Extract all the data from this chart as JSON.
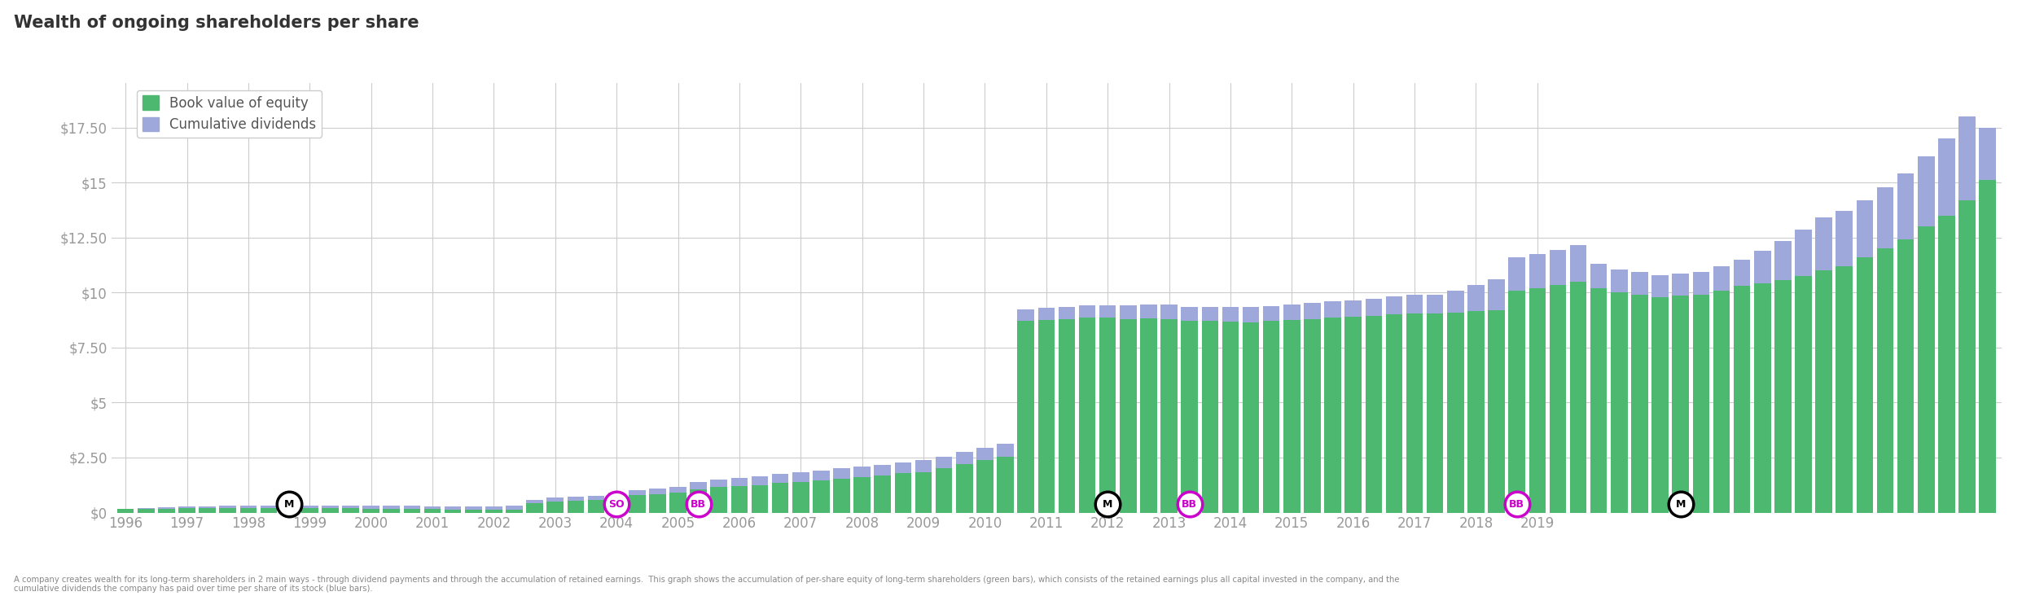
{
  "title": "Wealth of ongoing shareholders per share",
  "years_labels": [
    1996,
    1997,
    1998,
    1999,
    2000,
    2001,
    2002,
    2003,
    2004,
    2005,
    2006,
    2007,
    2008,
    2009,
    2010,
    2011,
    2012,
    2013,
    2014,
    2015,
    2016,
    2017,
    2018,
    2019
  ],
  "book_value": [
    0.15,
    0.17,
    0.18,
    0.19,
    0.2,
    0.21,
    0.22,
    0.22,
    0.22,
    0.21,
    0.21,
    0.2,
    0.18,
    0.17,
    0.16,
    0.15,
    0.14,
    0.13,
    0.13,
    0.14,
    0.42,
    0.5,
    0.55,
    0.58,
    0.7,
    0.78,
    0.85,
    0.9,
    1.05,
    1.15,
    1.2,
    1.25,
    1.35,
    1.4,
    1.48,
    1.55,
    1.62,
    1.7,
    1.78,
    1.85,
    2.0,
    2.2,
    2.4,
    2.55,
    8.7,
    8.75,
    8.8,
    8.85,
    8.85,
    8.8,
    8.82,
    8.8,
    8.72,
    8.7,
    8.68,
    8.65,
    8.7,
    8.75,
    8.8,
    8.85,
    8.9,
    8.95,
    9.0,
    9.05,
    9.05,
    9.1,
    9.15,
    9.2,
    10.1,
    10.2,
    10.35,
    10.5,
    10.2,
    10.0,
    9.9,
    9.8,
    9.85,
    9.9,
    10.1,
    10.3,
    10.4,
    10.55,
    10.75,
    11.0,
    11.2,
    11.6,
    12.0,
    12.4,
    13.0,
    13.5,
    14.2,
    15.1
  ],
  "cum_dividends": [
    0.03,
    0.05,
    0.06,
    0.07,
    0.08,
    0.09,
    0.1,
    0.11,
    0.11,
    0.12,
    0.12,
    0.13,
    0.13,
    0.13,
    0.14,
    0.14,
    0.15,
    0.15,
    0.15,
    0.16,
    0.16,
    0.17,
    0.17,
    0.18,
    0.22,
    0.24,
    0.26,
    0.28,
    0.32,
    0.35,
    0.38,
    0.4,
    0.4,
    0.42,
    0.44,
    0.46,
    0.46,
    0.48,
    0.5,
    0.52,
    0.52,
    0.54,
    0.56,
    0.58,
    0.52,
    0.54,
    0.56,
    0.58,
    0.58,
    0.6,
    0.62,
    0.64,
    0.64,
    0.65,
    0.66,
    0.68,
    0.68,
    0.7,
    0.72,
    0.74,
    0.74,
    0.78,
    0.82,
    0.86,
    0.86,
    1.0,
    1.2,
    1.4,
    1.5,
    1.55,
    1.6,
    1.65,
    1.1,
    1.05,
    1.02,
    1.0,
    1.0,
    1.05,
    1.1,
    1.2,
    1.5,
    1.8,
    2.1,
    2.4,
    2.5,
    2.6,
    2.8,
    3.0,
    3.2,
    3.5,
    3.8,
    2.4
  ],
  "green_color": "#4db870",
  "blue_color": "#9fa8da",
  "grid_color": "#cccccc",
  "ytick_vals": [
    0,
    2.5,
    5.0,
    7.5,
    10.0,
    12.5,
    15.0,
    17.5
  ],
  "ytick_labels": [
    "$0",
    "$2.50",
    "$5",
    "$7.50",
    "$10",
    "$12.50",
    "$15",
    "$17.50"
  ],
  "ylim": [
    0,
    19.5
  ],
  "annotations": [
    {
      "quarter_idx": 8,
      "label": "M",
      "style": "black"
    },
    {
      "quarter_idx": 24,
      "label": "SO",
      "style": "magenta"
    },
    {
      "quarter_idx": 28,
      "label": "BB",
      "style": "magenta"
    },
    {
      "quarter_idx": 48,
      "label": "M",
      "style": "black"
    },
    {
      "quarter_idx": 52,
      "label": "BB",
      "style": "magenta"
    },
    {
      "quarter_idx": 68,
      "label": "BB",
      "style": "magenta"
    },
    {
      "quarter_idx": 76,
      "label": "M",
      "style": "black"
    }
  ],
  "footnote_line1": "A company creates wealth for its long-term shareholders in 2 main ways - through dividend payments and through the accumulation of retained earnings.  This graph shows the accumulation of per-share equity of long-term shareholders (green bars), which consists of the retained earnings plus all capital invested in the company, and the",
  "footnote_line2": "cumulative dividends the company has paid over time per share of its stock (blue bars).",
  "legend_entries": [
    "Book value of equity",
    "Cumulative dividends"
  ]
}
